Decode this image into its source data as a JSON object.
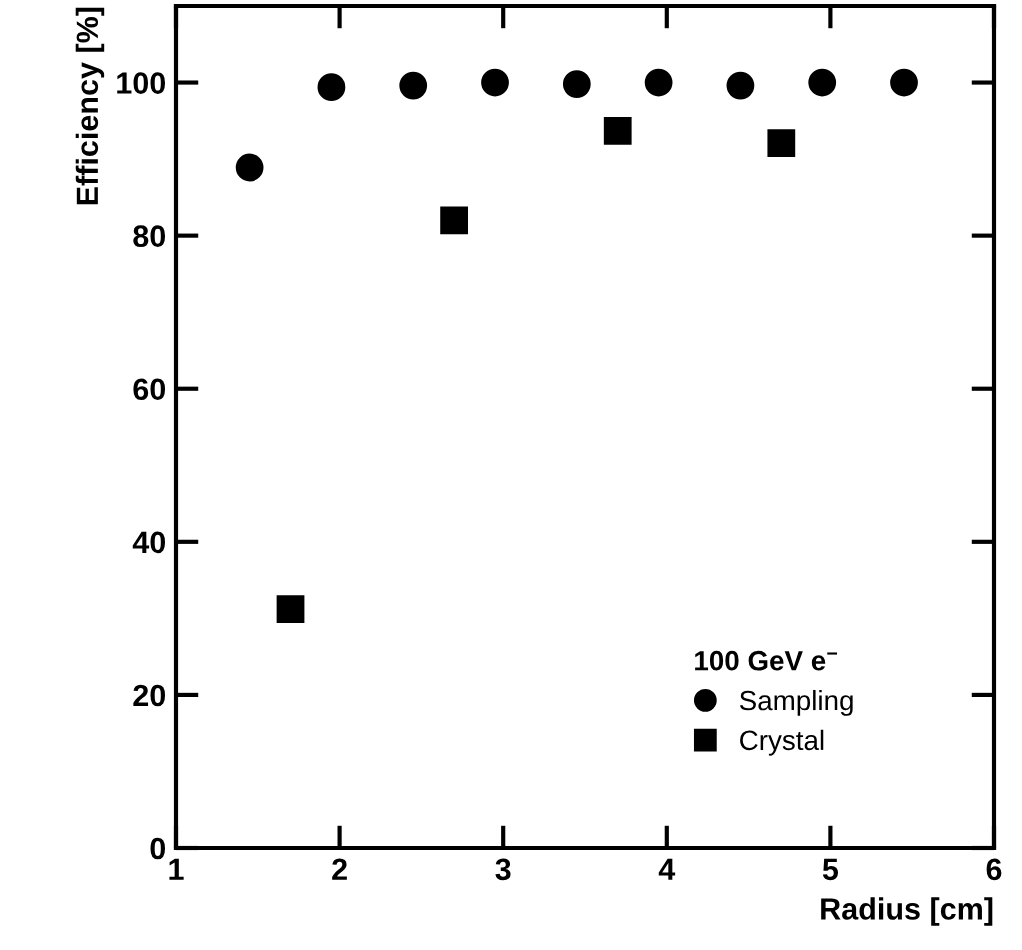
{
  "chart_data": {
    "type": "scatter",
    "xlabel": "Radius [cm]",
    "ylabel": "Efficiency [%]",
    "legend_title": "100 GeV e$^{−}$",
    "legend": "bottom right",
    "grid": false,
    "xlim": [
      1,
      6
    ],
    "xticks": [
      1,
      2,
      3,
      4,
      5,
      6
    ],
    "ylim": [
      0,
      110
    ],
    "yticks": [
      0,
      20,
      40,
      60,
      80,
      100
    ],
    "series": [
      {
        "name": "Sampling",
        "color": "#000000",
        "marker": "circle",
        "x": [
          1.45,
          1.95,
          2.45,
          2.95,
          3.45,
          3.95,
          4.45,
          4.95,
          5.45
        ],
        "values": [
          88.9,
          99.4,
          99.6,
          100,
          99.8,
          100,
          99.6,
          100,
          100
        ]
      },
      {
        "name": "Crystal",
        "color": "#000000",
        "marker": "square",
        "x": [
          1.7,
          2.7,
          3.7,
          4.7
        ],
        "values": [
          31.2,
          82,
          93.7,
          92.1
        ]
      }
    ]
  }
}
